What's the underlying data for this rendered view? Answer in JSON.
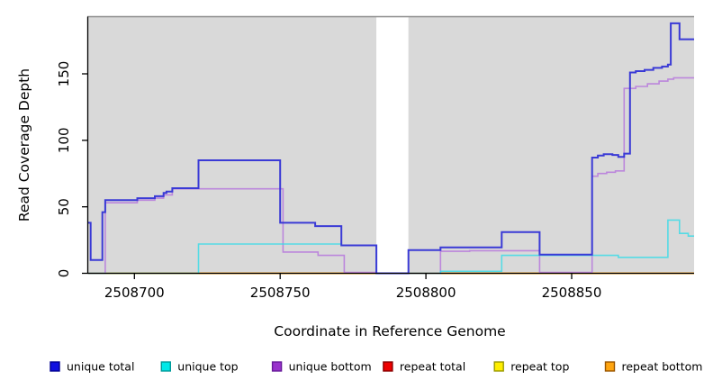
{
  "figure": {
    "background": "#ffffff",
    "plot_background": "#d9d9d9",
    "top_border_color": "#8c8c8c",
    "axis_color": "#000000",
    "gap_fill": "#ffffff"
  },
  "chart_data": {
    "type": "line",
    "style": "step",
    "title": "",
    "xlabel": "Coordinate in Reference Genome",
    "ylabel": "Read Coverage Depth",
    "xlim": [
      2508684,
      2508892
    ],
    "ylim": [
      0,
      193
    ],
    "x_ticks": [
      2508700,
      2508750,
      2508800,
      2508850
    ],
    "y_ticks": [
      0,
      50,
      100,
      150
    ],
    "grid": false,
    "legend_position": "bottom",
    "gap_region": {
      "x_start": 2508783,
      "x_end": 2508794
    },
    "series": [
      {
        "name": "repeat total",
        "color": "#ee0000",
        "opacity": 1,
        "width": 1.6,
        "points": [
          [
            2508684,
            0
          ],
          [
            2508892,
            0
          ]
        ]
      },
      {
        "name": "repeat top",
        "color": "#ffee00",
        "opacity": 1,
        "width": 1.6,
        "points": [
          [
            2508684,
            0
          ],
          [
            2508892,
            0
          ]
        ]
      },
      {
        "name": "repeat bottom",
        "color": "#ffa510",
        "opacity": 1,
        "width": 1.8,
        "points": [
          [
            2508684,
            0
          ],
          [
            2508892,
            0
          ]
        ]
      },
      {
        "name": "unique bottom",
        "color": "#b678dc",
        "opacity": 0.85,
        "width": 1.6,
        "points": [
          [
            2508684,
            0
          ],
          [
            2508690,
            53
          ],
          [
            2508701,
            55
          ],
          [
            2508707,
            56.5
          ],
          [
            2508710,
            59
          ],
          [
            2508713,
            63.5
          ],
          [
            2508751,
            16
          ],
          [
            2508763,
            13.5
          ],
          [
            2508772,
            0.7
          ],
          [
            2508783,
            0
          ],
          [
            2508794,
            0
          ],
          [
            2508805,
            16.5
          ],
          [
            2508815,
            17
          ],
          [
            2508839,
            0.7
          ],
          [
            2508857,
            73
          ],
          [
            2508859,
            75
          ],
          [
            2508862,
            76
          ],
          [
            2508865,
            77
          ],
          [
            2508868,
            139
          ],
          [
            2508872,
            140.5
          ],
          [
            2508876,
            142.5
          ],
          [
            2508880,
            144.5
          ],
          [
            2508883,
            146
          ],
          [
            2508885,
            147
          ],
          [
            2508892,
            147
          ]
        ]
      },
      {
        "name": "unique top",
        "color": "#30dbe8",
        "opacity": 0.78,
        "width": 1.6,
        "points": [
          [
            2508684,
            0
          ],
          [
            2508722,
            22
          ],
          [
            2508771,
            21
          ],
          [
            2508783,
            0
          ],
          [
            2508794,
            0
          ],
          [
            2508805,
            1.5
          ],
          [
            2508826,
            13.5
          ],
          [
            2508866,
            12
          ],
          [
            2508883,
            40
          ],
          [
            2508887,
            30
          ],
          [
            2508890,
            28
          ],
          [
            2508892,
            28
          ]
        ]
      },
      {
        "name": "unique total",
        "color": "#3a3ad6",
        "opacity": 1,
        "width": 2,
        "points": [
          [
            2508684,
            38
          ],
          [
            2508685,
            10
          ],
          [
            2508689,
            46
          ],
          [
            2508690,
            55
          ],
          [
            2508701,
            56.5
          ],
          [
            2508707,
            58
          ],
          [
            2508710,
            60.5
          ],
          [
            2508711,
            61.5
          ],
          [
            2508713,
            64
          ],
          [
            2508722,
            85
          ],
          [
            2508750,
            38
          ],
          [
            2508762,
            35.5
          ],
          [
            2508771,
            21
          ],
          [
            2508783,
            0
          ],
          [
            2508794,
            17.5
          ],
          [
            2508805,
            19.5
          ],
          [
            2508826,
            31
          ],
          [
            2508839,
            14
          ],
          [
            2508857,
            87
          ],
          [
            2508859,
            88.5
          ],
          [
            2508861,
            89.5
          ],
          [
            2508864,
            89
          ],
          [
            2508866,
            87.5
          ],
          [
            2508868,
            90
          ],
          [
            2508870,
            151
          ],
          [
            2508872,
            152
          ],
          [
            2508875,
            153
          ],
          [
            2508878,
            154.5
          ],
          [
            2508881,
            155.5
          ],
          [
            2508883,
            157
          ],
          [
            2508884,
            188
          ],
          [
            2508887,
            176
          ],
          [
            2508892,
            176
          ]
        ]
      }
    ],
    "legend": [
      {
        "label": "unique total",
        "fill": "#1010e0",
        "border": "#000090"
      },
      {
        "label": "unique top",
        "fill": "#00e8e8",
        "border": "#009999"
      },
      {
        "label": "unique bottom",
        "fill": "#9932cc",
        "border": "#661a99"
      },
      {
        "label": "repeat total",
        "fill": "#ee0000",
        "border": "#880000"
      },
      {
        "label": "repeat top",
        "fill": "#ffee00",
        "border": "#999900"
      },
      {
        "label": "repeat bottom",
        "fill": "#ffa510",
        "border": "#995500"
      }
    ]
  }
}
